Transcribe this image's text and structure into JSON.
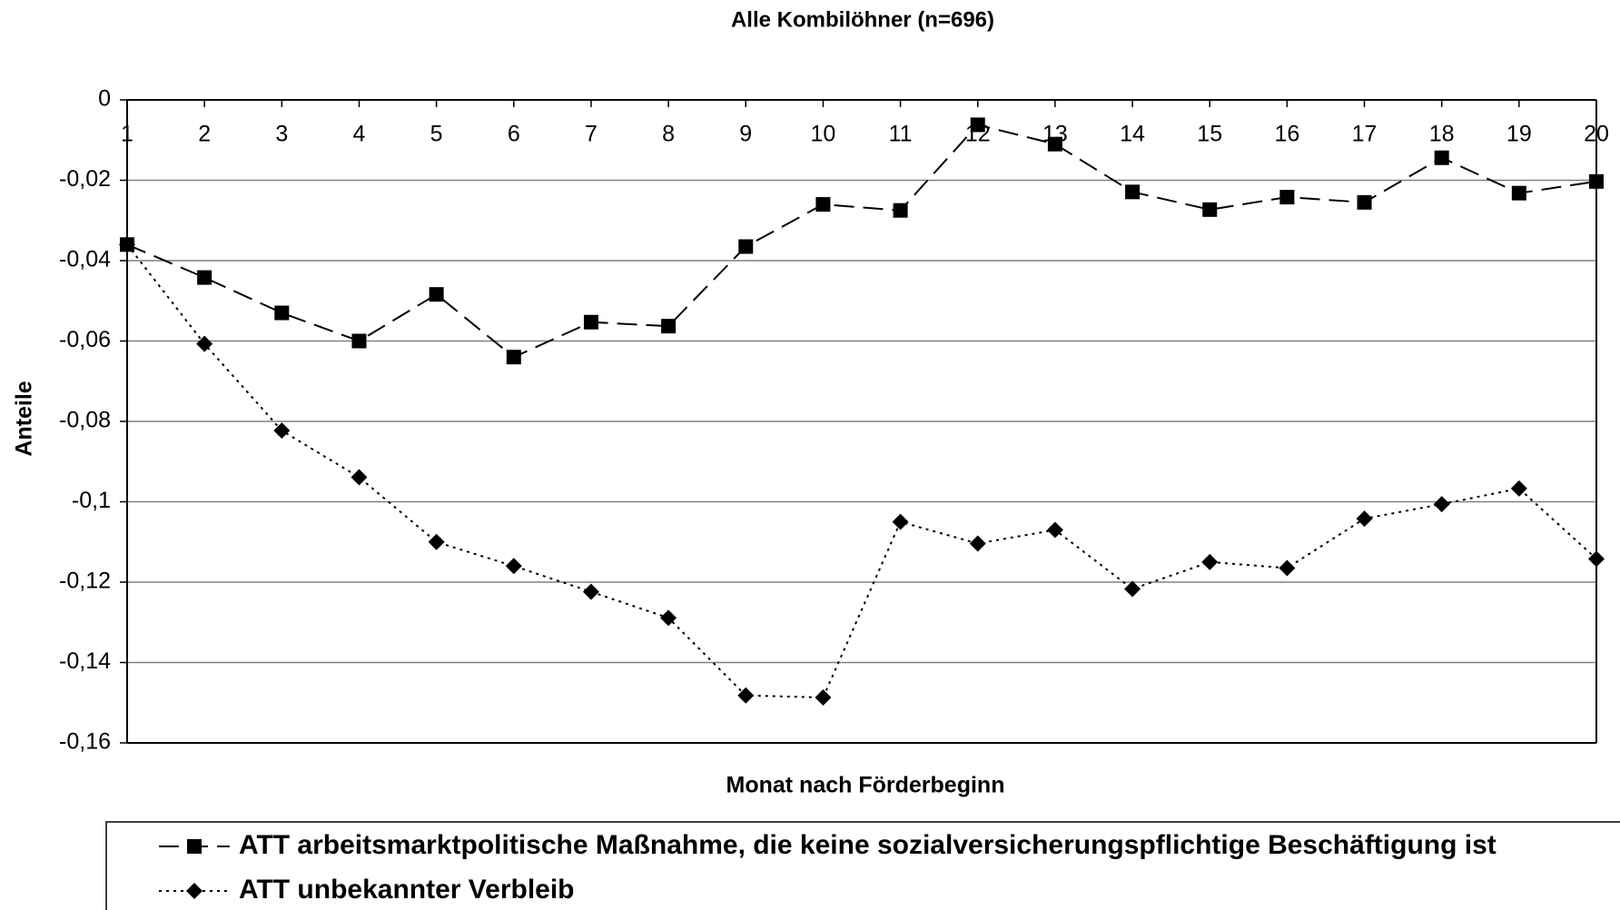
{
  "chart_data": {
    "type": "line",
    "title": "Alle Kombilöhner (n=696)",
    "x_label": "Monat nach Förderbeginn",
    "y_label": "Anteile",
    "categories": [
      "1",
      "2",
      "3",
      "4",
      "5",
      "6",
      "7",
      "8",
      "9",
      "10",
      "11",
      "12",
      "13",
      "14",
      "15",
      "16",
      "17",
      "18",
      "19",
      "20"
    ],
    "series": [
      {
        "name": "ATT arbeitsmarktpolitische Maßnahme, die keine sozialversicherungspflichtige Beschäftigung ist",
        "color": "#000000",
        "line_style": "dashed",
        "marker": "square",
        "values": [
          -0.036,
          -0.0442,
          -0.053,
          -0.06,
          -0.0484,
          -0.064,
          -0.0553,
          -0.0563,
          -0.0365,
          -0.026,
          -0.0275,
          -0.0062,
          -0.011,
          -0.0229,
          -0.0273,
          -0.0242,
          -0.0255,
          -0.0144,
          -0.0232,
          -0.0203
        ]
      },
      {
        "name": "ATT unbekannter Verbleib",
        "color": "#000000",
        "line_style": "dotted",
        "marker": "diamond",
        "values": [
          -0.036,
          -0.0607,
          -0.0823,
          -0.0939,
          -0.11,
          -0.116,
          -0.1224,
          -0.1289,
          -0.1482,
          -0.1487,
          -0.105,
          -0.1104,
          -0.107,
          -0.1217,
          -0.115,
          -0.1165,
          -0.1042,
          -0.1006,
          -0.0967,
          -0.1142
        ]
      }
    ],
    "ylim": [
      -0.16,
      0
    ],
    "yticks": [
      {
        "value": -0.16,
        "label": "-0,16"
      },
      {
        "value": -0.14,
        "label": "-0,14"
      },
      {
        "value": -0.12,
        "label": "-0,12"
      },
      {
        "value": -0.1,
        "label": "-0,1"
      },
      {
        "value": -0.08,
        "label": "-0,08"
      },
      {
        "value": -0.06,
        "label": "-0,06"
      },
      {
        "value": -0.04,
        "label": "-0,04"
      },
      {
        "value": -0.02,
        "label": "-0,02"
      },
      0
    ],
    "grid": true,
    "legend": "bottom"
  }
}
